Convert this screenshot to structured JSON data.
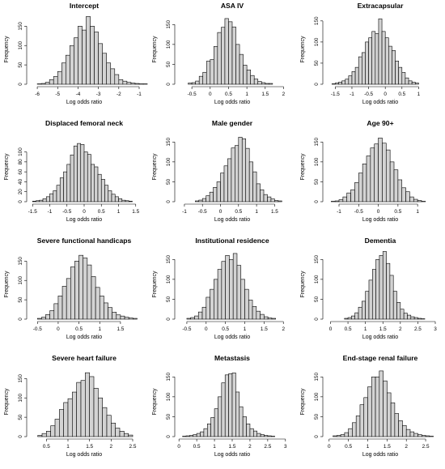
{
  "chart_data": [
    {
      "type": "bar",
      "title": "Intercept",
      "xlabel": "Log odds ratio",
      "ylabel": "Frequency",
      "xlim": [
        -6.4,
        -1.0
      ],
      "ylim": [
        0,
        180
      ],
      "xticks": [
        -6,
        -5,
        -4,
        -3,
        -2,
        -1
      ],
      "yticks": [
        0,
        50,
        100,
        150
      ],
      "bin_width": 0.2,
      "bin_start": -6.0,
      "values": [
        1,
        2,
        5,
        12,
        20,
        33,
        55,
        75,
        100,
        120,
        150,
        140,
        175,
        150,
        135,
        105,
        80,
        55,
        40,
        25,
        12,
        8,
        5,
        3,
        2,
        1,
        1
      ]
    },
    {
      "type": "bar",
      "title": "ASA IV",
      "xlabel": "Log odds ratio",
      "ylabel": "Frequency",
      "xlim": [
        -0.9,
        2.1
      ],
      "ylim": [
        0,
        175
      ],
      "xticks": [
        -0.5,
        0.0,
        0.5,
        1.0,
        1.5,
        2.0
      ],
      "yticks": [
        0,
        50,
        100,
        150
      ],
      "bin_width": 0.1,
      "bin_start": -0.6,
      "values": [
        3,
        4,
        8,
        20,
        30,
        58,
        62,
        95,
        130,
        143,
        165,
        157,
        144,
        100,
        75,
        48,
        36,
        22,
        13,
        7,
        4,
        2,
        2
      ]
    },
    {
      "type": "bar",
      "title": "Extracapsular",
      "xlabel": "Log odds ratio",
      "ylabel": "Frequency",
      "xlim": [
        -1.8,
        1.5
      ],
      "ylim": [
        0,
        165
      ],
      "xticks": [
        -1.5,
        -1.0,
        -0.5,
        0.0,
        0.5,
        1.0
      ],
      "yticks": [
        0,
        50,
        100,
        150
      ],
      "bin_width": 0.1,
      "bin_start": -1.6,
      "values": [
        1,
        3,
        5,
        8,
        12,
        20,
        30,
        40,
        65,
        75,
        100,
        110,
        125,
        120,
        155,
        125,
        110,
        90,
        80,
        55,
        40,
        28,
        15,
        8,
        5,
        3
      ]
    },
    {
      "type": "bar",
      "title": "Displaced femoral neck",
      "xlabel": "Log odds ratio",
      "ylabel": "Frequency",
      "xlim": [
        -1.6,
        1.6
      ],
      "ylim": [
        0,
        140
      ],
      "xticks": [
        -1.5,
        -1.0,
        -0.5,
        0.0,
        0.5,
        1.0,
        1.5
      ],
      "yticks": [
        0,
        20,
        40,
        60,
        80,
        100
      ],
      "bin_width": 0.1,
      "bin_start": -1.5,
      "values": [
        1,
        2,
        3,
        6,
        10,
        16,
        22,
        33,
        48,
        60,
        75,
        94,
        112,
        117,
        115,
        100,
        95,
        75,
        70,
        55,
        45,
        33,
        22,
        15,
        10,
        6,
        3,
        2,
        1
      ]
    },
    {
      "type": "bar",
      "title": "Male gender",
      "xlabel": "Log odds ratio",
      "ylabel": "Frequency",
      "xlim": [
        -1.2,
        1.85
      ],
      "ylim": [
        0,
        175
      ],
      "xticks": [
        -1.0,
        -0.5,
        0.0,
        0.5,
        1.0,
        1.5
      ],
      "yticks": [
        0,
        50,
        100,
        150
      ],
      "bin_width": 0.1,
      "bin_start": -0.7,
      "values": [
        2,
        4,
        8,
        15,
        24,
        36,
        50,
        72,
        90,
        108,
        135,
        141,
        162,
        158,
        134,
        100,
        75,
        45,
        30,
        18,
        12,
        7,
        3,
        2
      ]
    },
    {
      "type": "bar",
      "title": "Age 90+",
      "xlabel": "Log odds ratio",
      "ylabel": "Frequency",
      "xlim": [
        -1.35,
        1.45
      ],
      "ylim": [
        0,
        175
      ],
      "xticks": [
        -1.0,
        -0.5,
        0.0,
        0.5,
        1.0
      ],
      "yticks": [
        0,
        50,
        100,
        150
      ],
      "bin_width": 0.1,
      "bin_start": -1.2,
      "values": [
        1,
        2,
        5,
        12,
        22,
        30,
        48,
        72,
        95,
        115,
        135,
        145,
        160,
        147,
        130,
        100,
        80,
        55,
        35,
        25,
        12,
        6,
        3,
        1
      ]
    },
    {
      "type": "bar",
      "title": "Severe functional handicaps",
      "xlabel": "Log odds ratio",
      "ylabel": "Frequency",
      "xlim": [
        -0.7,
        1.95
      ],
      "ylim": [
        0,
        180
      ],
      "xticks": [
        -0.5,
        0.0,
        0.5,
        1.0,
        1.5
      ],
      "yticks": [
        0,
        50,
        100,
        150
      ],
      "bin_width": 0.1,
      "bin_start": -0.5,
      "values": [
        2,
        5,
        12,
        22,
        40,
        60,
        85,
        105,
        135,
        150,
        165,
        158,
        140,
        110,
        82,
        60,
        42,
        30,
        18,
        11,
        8,
        5,
        3,
        2
      ]
    },
    {
      "type": "bar",
      "title": "Institutional residence",
      "xlabel": "Log odds ratio",
      "ylabel": "Frequency",
      "xlim": [
        -0.75,
        2.1
      ],
      "ylim": [
        0,
        175
      ],
      "xticks": [
        -0.5,
        0.0,
        0.5,
        1.0,
        1.5,
        2.0
      ],
      "yticks": [
        0,
        50,
        100,
        150
      ],
      "bin_width": 0.1,
      "bin_start": -0.5,
      "values": [
        2,
        4,
        8,
        18,
        30,
        55,
        75,
        100,
        125,
        145,
        160,
        150,
        165,
        135,
        100,
        75,
        48,
        32,
        20,
        12,
        6,
        3,
        2
      ]
    },
    {
      "type": "bar",
      "title": "Dementia",
      "xlabel": "Log odds ratio",
      "ylabel": "Frequency",
      "xlim": [
        -0.15,
        3.0
      ],
      "ylim": [
        0,
        175
      ],
      "xticks": [
        0.0,
        0.5,
        1.0,
        1.5,
        2.0,
        2.5,
        3.0
      ],
      "yticks": [
        0,
        50,
        100,
        150
      ],
      "bin_width": 0.1,
      "bin_start": 0.4,
      "values": [
        2,
        4,
        8,
        16,
        30,
        45,
        70,
        98,
        125,
        150,
        160,
        170,
        140,
        110,
        70,
        42,
        25,
        15,
        10,
        6,
        4,
        2,
        1
      ]
    },
    {
      "type": "bar",
      "title": "Severe heart failure",
      "xlabel": "Log odds ratio",
      "ylabel": "Frequency",
      "xlim": [
        0.1,
        2.65
      ],
      "ylim": [
        0,
        180
      ],
      "xticks": [
        0.5,
        1.0,
        1.5,
        2.0,
        2.5
      ],
      "yticks": [
        0,
        50,
        100,
        150
      ],
      "bin_width": 0.1,
      "bin_start": 0.3,
      "values": [
        3,
        8,
        14,
        28,
        45,
        70,
        88,
        98,
        115,
        140,
        145,
        165,
        155,
        125,
        100,
        75,
        55,
        35,
        22,
        14,
        8,
        4
      ]
    },
    {
      "type": "bar",
      "title": "Metastasis",
      "xlabel": "Log odds ratio",
      "ylabel": "Frequency",
      "xlim": [
        -0.05,
        3.05
      ],
      "ylim": [
        0,
        175
      ],
      "xticks": [
        0.0,
        0.5,
        1.0,
        1.5,
        2.0,
        2.5,
        3.0
      ],
      "yticks": [
        0,
        50,
        100,
        150
      ],
      "bin_width": 0.1,
      "bin_start": 0.1,
      "values": [
        1,
        2,
        3,
        5,
        8,
        12,
        20,
        32,
        48,
        70,
        100,
        135,
        155,
        158,
        160,
        112,
        75,
        50,
        32,
        20,
        14,
        8,
        5,
        3,
        2,
        1
      ]
    },
    {
      "type": "bar",
      "title": "End-stage renal failure",
      "xlabel": "Log odds ratio",
      "ylabel": "Frequency",
      "xlim": [
        -0.1,
        2.75
      ],
      "ylim": [
        0,
        175
      ],
      "xticks": [
        0.0,
        0.5,
        1.0,
        1.5,
        2.0,
        2.5
      ],
      "yticks": [
        0,
        50,
        100,
        150
      ],
      "bin_width": 0.1,
      "bin_start": 0.1,
      "values": [
        2,
        3,
        5,
        10,
        20,
        35,
        52,
        80,
        98,
        125,
        150,
        150,
        165,
        140,
        110,
        85,
        58,
        40,
        28,
        18,
        12,
        8,
        5,
        3,
        2,
        1
      ]
    }
  ]
}
